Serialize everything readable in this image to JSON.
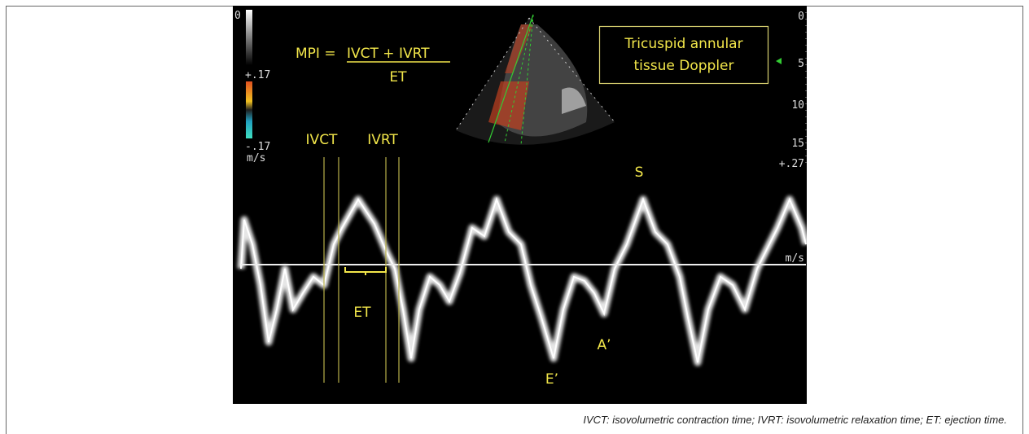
{
  "figure": {
    "formula": {
      "lhs": "MPI =",
      "numerator": "IVCT + IVRT",
      "denominator": "ET"
    },
    "box_label": [
      "Tricuspid annular",
      "tissue Doppler"
    ],
    "labels": {
      "ivct": "IVCT",
      "ivrt": "IVRT",
      "et": "ET",
      "s": "S",
      "e_prime": "E’",
      "a_prime": "A’"
    },
    "left_scale": {
      "top": "0",
      "upper": "+.17",
      "lower": "-.17",
      "unit": "m/s"
    },
    "right_scale": {
      "ticks": [
        "0",
        "5",
        "10",
        "15"
      ],
      "velocity": "+.27",
      "unit": "m/s"
    }
  },
  "caption": "IVCT: isovolumetric contraction time; IVRT: isovolumetric relaxation time; ET: ejection time."
}
